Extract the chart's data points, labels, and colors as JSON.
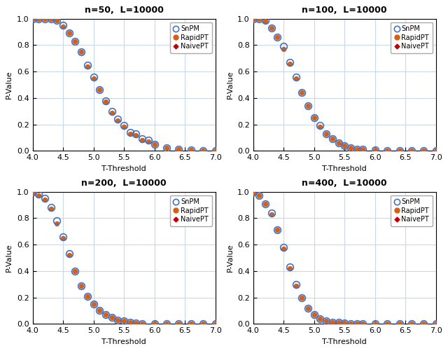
{
  "panels": [
    {
      "title": "n=50,  L=10000",
      "snpm_x": [
        4.0,
        4.1,
        4.2,
        4.3,
        4.4,
        4.5,
        4.6,
        4.7,
        4.8,
        4.9,
        5.0,
        5.1,
        5.2,
        5.3,
        5.4,
        5.5,
        5.6,
        5.7,
        5.8,
        5.9,
        6.0,
        6.2,
        6.4,
        6.6,
        6.8,
        7.0
      ],
      "snpm_y": [
        1.0,
        1.0,
        1.0,
        1.0,
        0.99,
        0.95,
        0.89,
        0.83,
        0.75,
        0.65,
        0.56,
        0.46,
        0.38,
        0.3,
        0.24,
        0.19,
        0.14,
        0.13,
        0.09,
        0.08,
        0.05,
        0.02,
        0.01,
        0.005,
        0.003,
        0.002
      ],
      "rapidpt_x": [
        4.0,
        4.1,
        4.2,
        4.3,
        4.4,
        4.5,
        4.6,
        4.7,
        4.8,
        4.9,
        5.0,
        5.1,
        5.2,
        5.3,
        5.4,
        5.5,
        5.6,
        5.7,
        5.8,
        5.9,
        6.0,
        6.2,
        6.4,
        6.6,
        6.8,
        7.0
      ],
      "rapidpt_y": [
        1.0,
        1.0,
        1.0,
        1.0,
        0.99,
        0.94,
        0.89,
        0.83,
        0.75,
        0.64,
        0.55,
        0.46,
        0.37,
        0.29,
        0.23,
        0.18,
        0.13,
        0.12,
        0.08,
        0.07,
        0.05,
        0.02,
        0.01,
        0.005,
        0.003,
        0.002
      ],
      "naivept_x": [
        4.0,
        4.1,
        4.2,
        4.3,
        4.4,
        4.5,
        4.6,
        4.7,
        4.8,
        4.9,
        5.0,
        5.1,
        5.2,
        5.3,
        5.4,
        5.5,
        5.6,
        5.7,
        5.8,
        5.9,
        6.0,
        6.2,
        6.4,
        6.6,
        6.8,
        7.0
      ],
      "naivept_y": [
        1.0,
        1.0,
        1.0,
        1.0,
        0.99,
        0.94,
        0.89,
        0.83,
        0.75,
        0.64,
        0.55,
        0.46,
        0.37,
        0.29,
        0.23,
        0.18,
        0.13,
        0.12,
        0.08,
        0.07,
        0.05,
        0.02,
        0.01,
        0.005,
        0.003,
        0.002
      ]
    },
    {
      "title": "n=100,  L=10000",
      "snpm_x": [
        4.0,
        4.1,
        4.2,
        4.3,
        4.4,
        4.5,
        4.6,
        4.7,
        4.8,
        4.9,
        5.0,
        5.1,
        5.2,
        5.3,
        5.4,
        5.5,
        5.6,
        5.7,
        5.8,
        6.0,
        6.2,
        6.4,
        6.6,
        6.8,
        7.0
      ],
      "snpm_y": [
        1.0,
        1.0,
        0.99,
        0.93,
        0.86,
        0.79,
        0.67,
        0.56,
        0.44,
        0.34,
        0.25,
        0.19,
        0.13,
        0.09,
        0.06,
        0.04,
        0.02,
        0.01,
        0.01,
        0.005,
        0.003,
        0.001,
        0.001,
        0.001,
        0.001
      ],
      "rapidpt_x": [
        4.0,
        4.1,
        4.2,
        4.3,
        4.4,
        4.5,
        4.6,
        4.7,
        4.8,
        4.9,
        5.0,
        5.1,
        5.2,
        5.3,
        5.4,
        5.5,
        5.6,
        5.7,
        5.8,
        6.0,
        6.2,
        6.4,
        6.6,
        6.8,
        7.0
      ],
      "rapidpt_y": [
        1.0,
        1.0,
        0.98,
        0.93,
        0.86,
        0.77,
        0.66,
        0.55,
        0.44,
        0.34,
        0.25,
        0.18,
        0.13,
        0.09,
        0.06,
        0.04,
        0.02,
        0.01,
        0.01,
        0.005,
        0.003,
        0.001,
        0.001,
        0.001,
        0.001
      ],
      "naivept_x": [
        4.0,
        4.1,
        4.2,
        4.3,
        4.4,
        4.5,
        4.6,
        4.7,
        4.8,
        4.9,
        5.0,
        5.1,
        5.2,
        5.3,
        5.4,
        5.5,
        5.6,
        5.7,
        5.8,
        6.0,
        6.2,
        6.4,
        6.6,
        6.8,
        7.0
      ],
      "naivept_y": [
        1.0,
        1.0,
        0.98,
        0.93,
        0.86,
        0.77,
        0.66,
        0.55,
        0.44,
        0.34,
        0.25,
        0.18,
        0.13,
        0.09,
        0.06,
        0.04,
        0.02,
        0.01,
        0.01,
        0.005,
        0.003,
        0.001,
        0.001,
        0.001,
        0.001
      ]
    },
    {
      "title": "n=200,  L=10000",
      "snpm_x": [
        4.0,
        4.1,
        4.2,
        4.3,
        4.4,
        4.5,
        4.6,
        4.7,
        4.8,
        4.9,
        5.0,
        5.1,
        5.2,
        5.3,
        5.4,
        5.5,
        5.6,
        5.7,
        5.8,
        6.0,
        6.2,
        6.4,
        6.6,
        6.8,
        7.0
      ],
      "snpm_y": [
        1.0,
        0.98,
        0.95,
        0.88,
        0.78,
        0.66,
        0.53,
        0.4,
        0.29,
        0.21,
        0.15,
        0.1,
        0.07,
        0.05,
        0.03,
        0.02,
        0.01,
        0.005,
        0.003,
        0.002,
        0.001,
        0.001,
        0.001,
        0.001,
        0.001
      ],
      "rapidpt_x": [
        4.0,
        4.1,
        4.2,
        4.3,
        4.4,
        4.5,
        4.6,
        4.7,
        4.8,
        4.9,
        5.0,
        5.1,
        5.2,
        5.3,
        5.4,
        5.5,
        5.6,
        5.7,
        5.8,
        6.0,
        6.2,
        6.4,
        6.6,
        6.8,
        7.0
      ],
      "rapidpt_y": [
        0.99,
        0.97,
        0.94,
        0.87,
        0.76,
        0.65,
        0.52,
        0.4,
        0.29,
        0.21,
        0.15,
        0.1,
        0.07,
        0.05,
        0.03,
        0.02,
        0.01,
        0.005,
        0.003,
        0.002,
        0.001,
        0.001,
        0.001,
        0.001,
        0.001
      ],
      "naivept_x": [
        4.0,
        4.1,
        4.2,
        4.3,
        4.4,
        4.5,
        4.6,
        4.7,
        4.8,
        4.9,
        5.0,
        5.1,
        5.2,
        5.3,
        5.4,
        5.5,
        5.6,
        5.7,
        5.8,
        6.0,
        6.2,
        6.4,
        6.6,
        6.8,
        7.0
      ],
      "naivept_y": [
        0.99,
        0.97,
        0.94,
        0.87,
        0.76,
        0.65,
        0.52,
        0.4,
        0.29,
        0.21,
        0.15,
        0.1,
        0.07,
        0.05,
        0.03,
        0.02,
        0.01,
        0.005,
        0.003,
        0.002,
        0.001,
        0.001,
        0.001,
        0.001,
        0.001
      ]
    },
    {
      "title": "n=400,  L=10000",
      "snpm_x": [
        4.0,
        4.1,
        4.2,
        4.3,
        4.4,
        4.5,
        4.6,
        4.7,
        4.8,
        4.9,
        5.0,
        5.1,
        5.2,
        5.3,
        5.4,
        5.5,
        5.6,
        5.7,
        5.8,
        6.0,
        6.2,
        6.4,
        6.6,
        6.8,
        7.0
      ],
      "snpm_y": [
        1.0,
        0.97,
        0.91,
        0.84,
        0.71,
        0.58,
        0.43,
        0.3,
        0.2,
        0.12,
        0.07,
        0.04,
        0.02,
        0.01,
        0.01,
        0.005,
        0.003,
        0.002,
        0.001,
        0.001,
        0.001,
        0.001,
        0.001,
        0.001,
        0.001
      ],
      "rapidpt_x": [
        4.0,
        4.1,
        4.2,
        4.3,
        4.4,
        4.5,
        4.6,
        4.7,
        4.8,
        4.9,
        5.0,
        5.1,
        5.2,
        5.3,
        5.4,
        5.5,
        5.6,
        5.7,
        5.8,
        6.0,
        6.2,
        6.4,
        6.6,
        6.8,
        7.0
      ],
      "rapidpt_y": [
        0.99,
        0.97,
        0.91,
        0.83,
        0.71,
        0.57,
        0.42,
        0.29,
        0.2,
        0.12,
        0.07,
        0.04,
        0.02,
        0.01,
        0.01,
        0.005,
        0.003,
        0.002,
        0.001,
        0.001,
        0.001,
        0.001,
        0.001,
        0.001,
        0.001
      ],
      "naivept_x": [
        4.0,
        4.1,
        4.2,
        4.3,
        4.4,
        4.5,
        4.6,
        4.7,
        4.8,
        4.9,
        5.0,
        5.1,
        5.2,
        5.3,
        5.4,
        5.5,
        5.6,
        5.7,
        5.8,
        6.0,
        6.2,
        6.4,
        6.6,
        6.8,
        7.0
      ],
      "naivept_y": [
        0.99,
        0.97,
        0.91,
        0.83,
        0.71,
        0.57,
        0.42,
        0.29,
        0.2,
        0.12,
        0.07,
        0.04,
        0.02,
        0.01,
        0.01,
        0.005,
        0.003,
        0.002,
        0.001,
        0.001,
        0.001,
        0.001,
        0.001,
        0.001,
        0.001
      ]
    }
  ],
  "color_snpm": "#4472C4",
  "color_rapidpt": "#D45F17",
  "color_naivept": "#C00000",
  "xlabel": "T-Threshold",
  "ylabel": "P-Value",
  "xlim": [
    4.0,
    7.0
  ],
  "ylim": [
    0.0,
    1.0
  ],
  "xticks": [
    4.0,
    4.5,
    5.0,
    5.5,
    6.0,
    6.5,
    7.0
  ],
  "yticks": [
    0.0,
    0.2,
    0.4,
    0.6,
    0.8,
    1.0
  ],
  "grid_color": "#C8D8E8",
  "bg_color": "#FFFFFF",
  "title_fontsize": 9,
  "label_fontsize": 8,
  "tick_fontsize": 8,
  "legend_fontsize": 7
}
